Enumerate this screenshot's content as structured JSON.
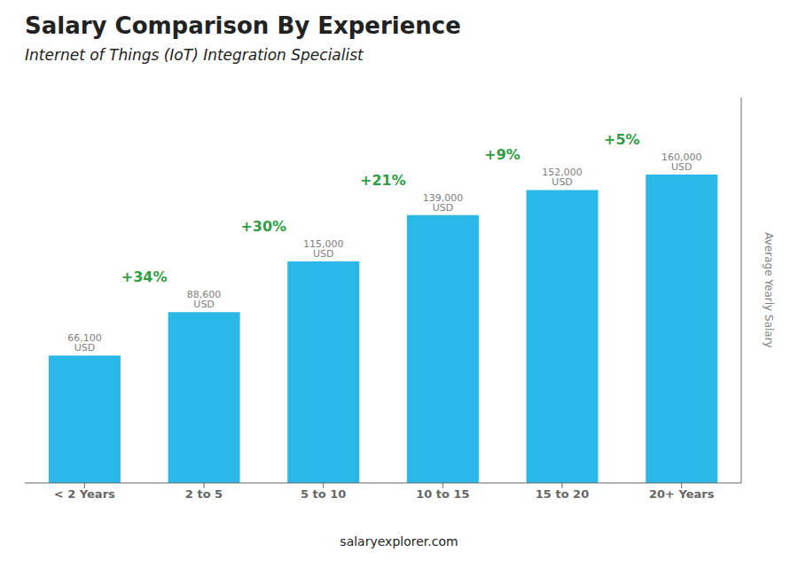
{
  "chart_data": {
    "type": "bar",
    "title": "Salary Comparison By Experience",
    "subtitle": "Internet of Things (IoT) Integration Specialist",
    "y_label": "Average Yearly Salary",
    "footer": "salaryexplorer.com",
    "categories": [
      "< 2 Years",
      "2 to 5",
      "5 to 10",
      "10 to 15",
      "15 to 20",
      "20+ Years"
    ],
    "values": [
      66100,
      88600,
      115000,
      139000,
      152000,
      160000
    ],
    "value_labels": [
      "66,100 USD",
      "88,600 USD",
      "115,000 USD",
      "139,000 USD",
      "152,000 USD",
      "160,000 USD"
    ],
    "data_labels": true,
    "annotations": [
      "+34%",
      "+30%",
      "+21%",
      "+9%",
      "+5%"
    ],
    "color": "#29b8e8",
    "ylim": [
      0,
      200000
    ],
    "tick_labels": "x"
  }
}
